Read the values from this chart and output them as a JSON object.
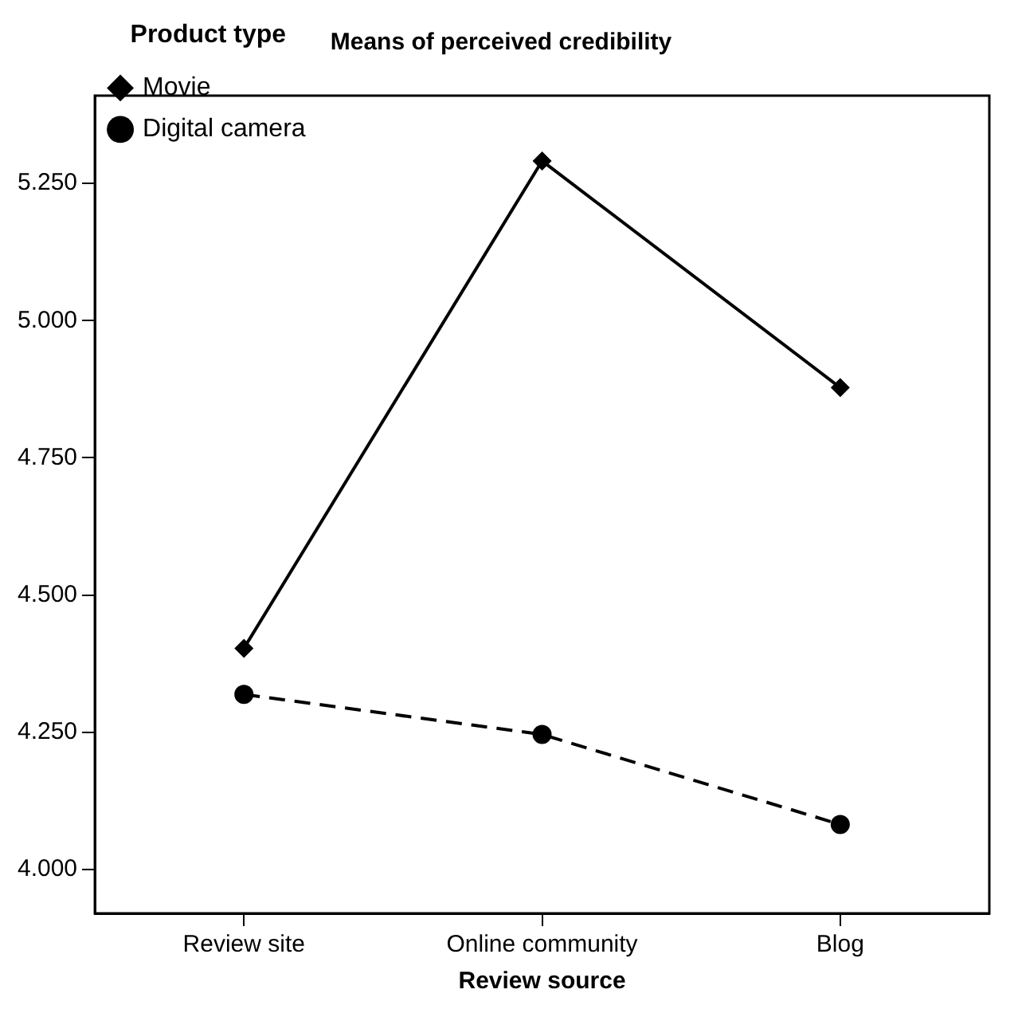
{
  "chart_data": {
    "type": "line",
    "title": "Means of perceived credibility",
    "xlabel": "Review source",
    "legend_title": "Product type",
    "categories": [
      "Review site",
      "Online community",
      "Blog"
    ],
    "series": [
      {
        "name": "Movie",
        "color": "#000000",
        "values": [
          4.403,
          5.291,
          4.878
        ],
        "marker": "diamond",
        "line_style": "solid"
      },
      {
        "name": "Digital camera",
        "color": "#000000",
        "values": [
          4.319,
          4.246,
          4.082
        ],
        "marker": "circle",
        "line_style": "dashed"
      }
    ],
    "ylim": [
      3.92,
      5.41
    ],
    "yticks": [
      {
        "value": 4,
        "label": "4.000"
      },
      {
        "value": 4.25,
        "label": "4.250"
      },
      {
        "value": 4.5,
        "label": "4.500"
      },
      {
        "value": 4.75,
        "label": "4.750"
      },
      {
        "value": 5,
        "label": "5.000"
      },
      {
        "value": 5.25,
        "label": "5.250"
      }
    ],
    "grid": false,
    "legend": "top left"
  }
}
